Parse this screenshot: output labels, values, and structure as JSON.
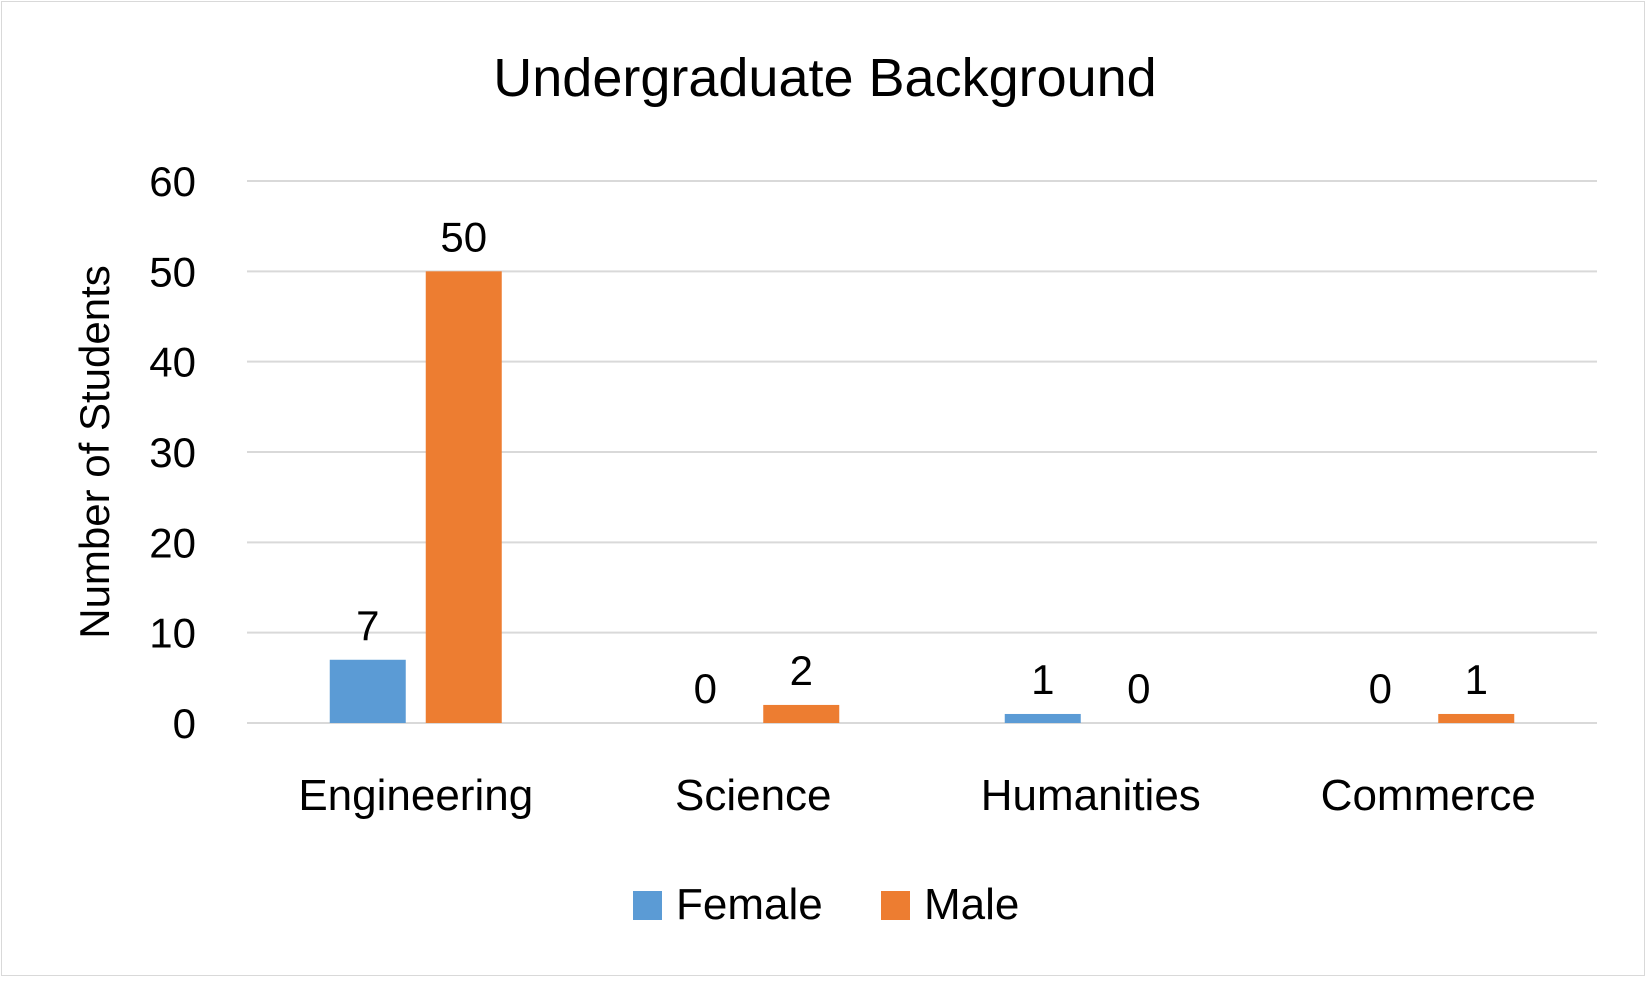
{
  "chart_data": {
    "type": "bar",
    "title": "Undergraduate Background",
    "xlabel": "",
    "ylabel": "Number of Students",
    "categories": [
      "Engineering",
      "Science",
      "Humanities",
      "Commerce"
    ],
    "series": [
      {
        "name": "Female",
        "values": [
          7,
          0,
          1,
          0
        ],
        "color": "#5b9bd5"
      },
      {
        "name": "Male",
        "values": [
          50,
          2,
          0,
          1
        ],
        "color": "#ed7d31"
      }
    ],
    "ylim": [
      0,
      60
    ],
    "yticks": [
      0,
      10,
      20,
      30,
      40,
      50,
      60
    ],
    "grid": true,
    "legend_position": "bottom",
    "data_labels": true,
    "gridline_color": "#d9d9d9",
    "axis_color": "#d9d9d9"
  }
}
